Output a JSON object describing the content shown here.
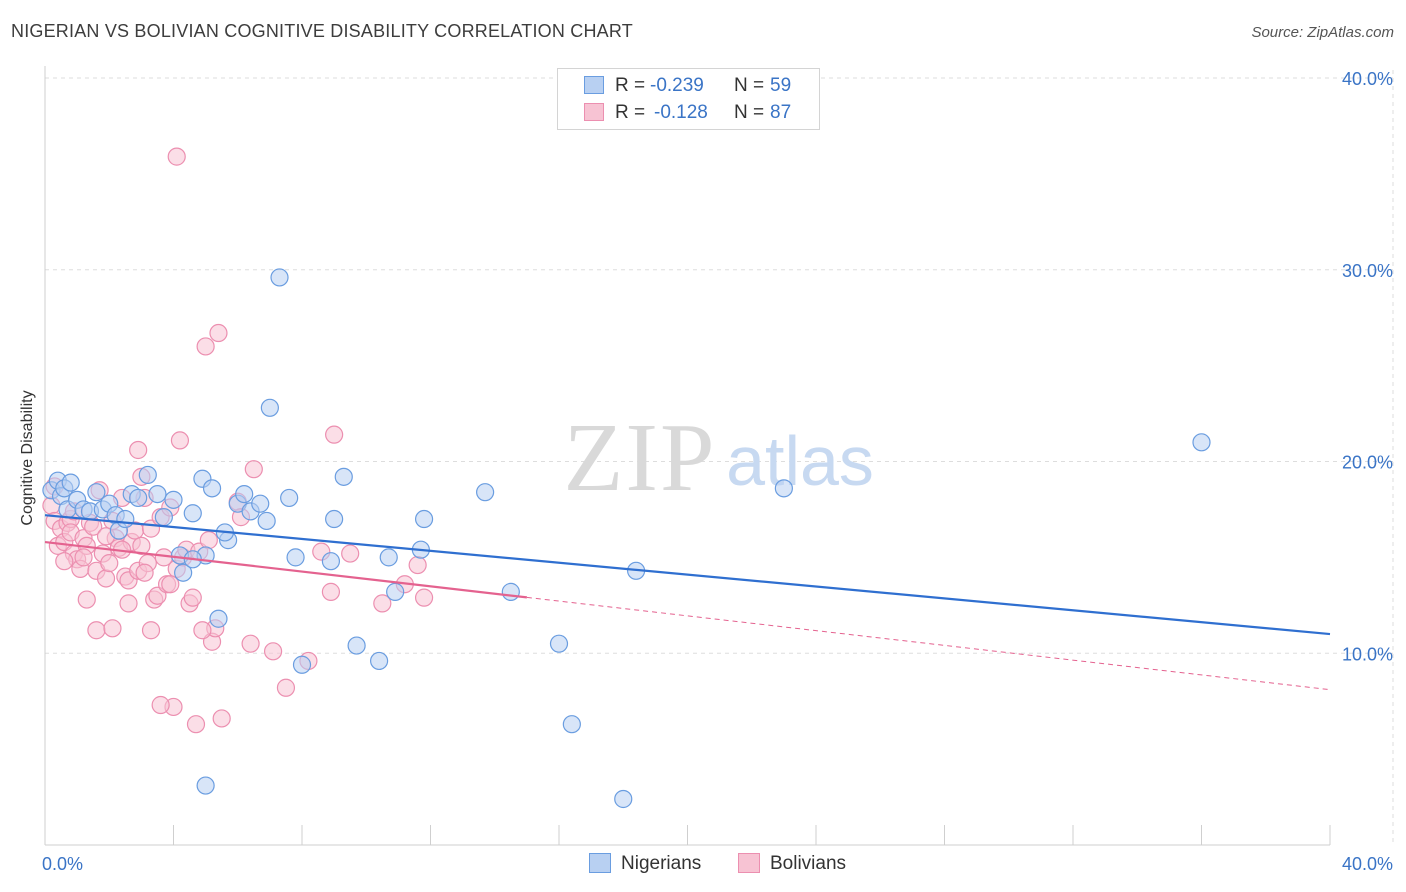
{
  "title": "NIGERIAN VS BOLIVIAN COGNITIVE DISABILITY CORRELATION CHART",
  "source": "Source: ZipAtlas.com",
  "watermark": {
    "zip": "ZIP",
    "atlas": "atlas"
  },
  "legend": {
    "rows": [
      {
        "r_label": "R =",
        "r_value": "-0.239",
        "n_label": "N =",
        "n_value": "59"
      },
      {
        "r_label": "R =",
        "r_value": "-0.128",
        "n_label": "N =",
        "n_value": "87"
      }
    ]
  },
  "bottom_legend": [
    "Nigerians",
    "Bolivians"
  ],
  "colors": {
    "nigerians_fill": "#b8d0f2",
    "nigerians_stroke": "#6a9de0",
    "nigerians_line": "#2f6fd0",
    "bolivians_fill": "#f7c3d3",
    "bolivians_stroke": "#ec8fb0",
    "bolivians_line": "#e4628f",
    "axis_label": "#3a74c6",
    "grid": "#dddddd"
  },
  "chart_data": {
    "type": "scatter",
    "title": "NIGERIAN VS BOLIVIAN COGNITIVE DISABILITY CORRELATION CHART",
    "xlabel": "",
    "ylabel": "Cognitive Disability",
    "xlim": [
      0,
      40
    ],
    "ylim": [
      0,
      40
    ],
    "x_tick_labels": [
      "0.0%",
      "40.0%"
    ],
    "y_ticks": [
      10,
      20,
      30,
      40
    ],
    "y_tick_labels": [
      "10.0%",
      "20.0%",
      "30.0%",
      "40.0%"
    ],
    "grid": true,
    "series": [
      {
        "name": "Nigerians",
        "r": -0.239,
        "n": 59,
        "trend": {
          "x": [
            0,
            40
          ],
          "y": [
            17.2,
            11.0
          ],
          "dashed_from": null
        },
        "points": [
          [
            0.2,
            18.5
          ],
          [
            0.4,
            19.0
          ],
          [
            0.5,
            18.2
          ],
          [
            0.6,
            18.6
          ],
          [
            0.8,
            18.9
          ],
          [
            0.7,
            17.5
          ],
          [
            1.0,
            18.0
          ],
          [
            1.2,
            17.5
          ],
          [
            1.4,
            17.4
          ],
          [
            1.6,
            18.4
          ],
          [
            1.8,
            17.5
          ],
          [
            2.0,
            17.8
          ],
          [
            2.2,
            17.2
          ],
          [
            2.3,
            16.4
          ],
          [
            2.5,
            17.0
          ],
          [
            2.7,
            18.3
          ],
          [
            3.2,
            19.3
          ],
          [
            3.5,
            18.3
          ],
          [
            3.7,
            17.1
          ],
          [
            4.0,
            18.0
          ],
          [
            4.2,
            15.1
          ],
          [
            4.3,
            14.2
          ],
          [
            4.6,
            17.3
          ],
          [
            4.9,
            19.1
          ],
          [
            5.0,
            15.1
          ],
          [
            5.2,
            18.6
          ],
          [
            5.4,
            11.8
          ],
          [
            5.7,
            15.9
          ],
          [
            6.0,
            17.8
          ],
          [
            6.2,
            18.3
          ],
          [
            6.4,
            17.4
          ],
          [
            6.7,
            17.8
          ],
          [
            6.9,
            16.9
          ],
          [
            7.0,
            22.8
          ],
          [
            7.3,
            29.6
          ],
          [
            7.6,
            18.1
          ],
          [
            7.8,
            15.0
          ],
          [
            8.0,
            9.4
          ],
          [
            8.9,
            14.8
          ],
          [
            9.0,
            17.0
          ],
          [
            9.3,
            19.2
          ],
          [
            9.7,
            10.4
          ],
          [
            10.4,
            9.6
          ],
          [
            10.7,
            15.0
          ],
          [
            10.9,
            13.2
          ],
          [
            11.7,
            15.4
          ],
          [
            11.8,
            17.0
          ],
          [
            13.7,
            18.4
          ],
          [
            14.5,
            13.2
          ],
          [
            16.0,
            10.5
          ],
          [
            16.4,
            6.3
          ],
          [
            18.0,
            2.4
          ],
          [
            18.4,
            14.3
          ],
          [
            23.0,
            18.6
          ],
          [
            36.0,
            21.0
          ],
          [
            5.6,
            16.3
          ],
          [
            2.9,
            18.1
          ],
          [
            4.6,
            14.9
          ],
          [
            5.0,
            3.1
          ]
        ]
      },
      {
        "name": "Bolivians",
        "r": -0.128,
        "n": 87,
        "trend": {
          "x": [
            0,
            40
          ],
          "y": [
            15.8,
            8.1
          ],
          "dashed_from": 15
        },
        "points": [
          [
            0.2,
            17.7
          ],
          [
            0.3,
            18.7
          ],
          [
            0.3,
            16.9
          ],
          [
            0.4,
            15.6
          ],
          [
            0.5,
            16.5
          ],
          [
            0.6,
            15.8
          ],
          [
            0.7,
            16.8
          ],
          [
            0.8,
            17.0
          ],
          [
            0.8,
            16.3
          ],
          [
            0.9,
            15.2
          ],
          [
            1.0,
            14.9
          ],
          [
            1.1,
            14.4
          ],
          [
            1.2,
            16.0
          ],
          [
            1.3,
            15.6
          ],
          [
            1.4,
            16.8
          ],
          [
            1.5,
            16.6
          ],
          [
            1.6,
            14.3
          ],
          [
            1.7,
            18.5
          ],
          [
            1.8,
            15.2
          ],
          [
            1.9,
            13.9
          ],
          [
            2.0,
            14.7
          ],
          [
            2.1,
            16.9
          ],
          [
            2.2,
            16.0
          ],
          [
            2.3,
            15.5
          ],
          [
            2.4,
            18.1
          ],
          [
            2.5,
            14.0
          ],
          [
            2.6,
            13.8
          ],
          [
            2.7,
            15.8
          ],
          [
            2.8,
            16.4
          ],
          [
            2.9,
            14.3
          ],
          [
            3.0,
            15.6
          ],
          [
            3.0,
            19.2
          ],
          [
            3.1,
            18.1
          ],
          [
            3.2,
            14.7
          ],
          [
            3.3,
            16.5
          ],
          [
            3.4,
            12.8
          ],
          [
            3.5,
            13.0
          ],
          [
            3.6,
            17.1
          ],
          [
            3.7,
            15.0
          ],
          [
            3.8,
            13.6
          ],
          [
            3.9,
            17.6
          ],
          [
            4.0,
            7.2
          ],
          [
            4.1,
            14.4
          ],
          [
            4.2,
            21.1
          ],
          [
            4.3,
            15.0
          ],
          [
            4.4,
            15.4
          ],
          [
            4.5,
            12.6
          ],
          [
            4.6,
            12.9
          ],
          [
            4.7,
            6.3
          ],
          [
            4.8,
            15.3
          ],
          [
            5.0,
            26.0
          ],
          [
            5.2,
            10.6
          ],
          [
            5.3,
            11.3
          ],
          [
            5.4,
            26.7
          ],
          [
            5.5,
            6.6
          ],
          [
            6.0,
            17.9
          ],
          [
            6.1,
            17.1
          ],
          [
            6.4,
            10.5
          ],
          [
            6.5,
            19.6
          ],
          [
            7.1,
            10.1
          ],
          [
            7.5,
            8.2
          ],
          [
            8.2,
            9.6
          ],
          [
            8.6,
            15.3
          ],
          [
            8.9,
            13.2
          ],
          [
            9.0,
            21.4
          ],
          [
            9.5,
            15.2
          ],
          [
            10.5,
            12.6
          ],
          [
            11.2,
            13.6
          ],
          [
            11.8,
            12.9
          ],
          [
            11.6,
            14.6
          ],
          [
            4.1,
            35.9
          ],
          [
            1.6,
            11.2
          ],
          [
            2.1,
            11.3
          ],
          [
            0.9,
            17.4
          ],
          [
            1.3,
            12.8
          ],
          [
            2.6,
            12.6
          ],
          [
            3.3,
            11.2
          ],
          [
            3.6,
            7.3
          ],
          [
            4.9,
            11.2
          ],
          [
            2.9,
            20.6
          ],
          [
            1.2,
            15.0
          ],
          [
            0.6,
            14.8
          ],
          [
            1.9,
            16.1
          ],
          [
            2.4,
            15.4
          ],
          [
            3.1,
            14.2
          ],
          [
            5.1,
            15.9
          ],
          [
            3.9,
            13.6
          ]
        ]
      }
    ]
  }
}
